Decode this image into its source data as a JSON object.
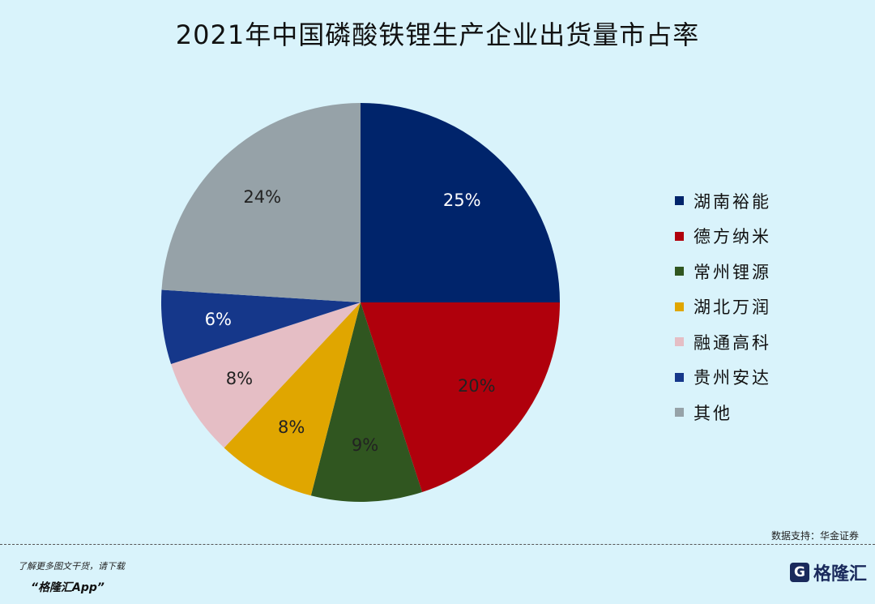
{
  "title": "2021年中国磷酸铁锂生产企业出货量市占率",
  "chart_data": {
    "type": "pie",
    "title": "2021年中国磷酸铁锂生产企业出货量市占率",
    "legend": "right",
    "slices": [
      {
        "label": "湖南裕能",
        "value": 25,
        "display": "25%",
        "color": "#00246b",
        "text_color": "#ffffff"
      },
      {
        "label": "德方纳米",
        "value": 20,
        "display": "20%",
        "color": "#b0000c",
        "text_color": "#222222"
      },
      {
        "label": "常州锂源",
        "value": 9,
        "display": "9%",
        "color": "#305620",
        "text_color": "#222222"
      },
      {
        "label": "湖北万润",
        "value": 8,
        "display": "8%",
        "color": "#e0a600",
        "text_color": "#222222"
      },
      {
        "label": "融通高科",
        "value": 8,
        "display": "8%",
        "color": "#e5bec5",
        "text_color": "#222222"
      },
      {
        "label": "贵州安达",
        "value": 6,
        "display": "6%",
        "color": "#15378a",
        "text_color": "#ffffff"
      },
      {
        "label": "其他",
        "value": 24,
        "display": "24%",
        "color": "#96a2a8",
        "text_color": "#222222"
      }
    ]
  },
  "source": "数据支持：华金证券",
  "promo": {
    "line1": "了解更多图文干货，请下载",
    "line2": "“格隆汇App”"
  },
  "brand": {
    "logo_letter": "G",
    "name": "格隆汇"
  }
}
